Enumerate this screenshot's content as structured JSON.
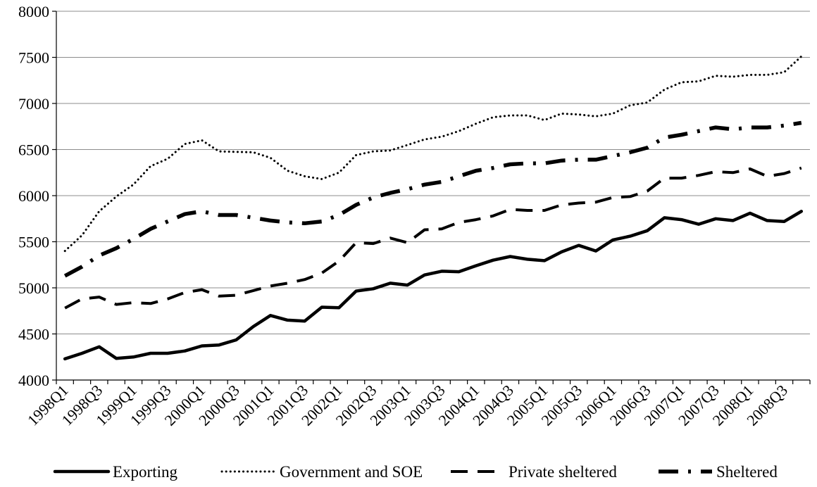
{
  "chart_data": {
    "type": "line",
    "title": "",
    "xlabel": "",
    "ylabel": "",
    "ylim": [
      4000,
      8000
    ],
    "yticks": [
      4000,
      4500,
      5000,
      5500,
      6000,
      6500,
      7000,
      7500,
      8000
    ],
    "grid": "horizontal",
    "legend_position": "bottom",
    "x": [
      "1998Q1",
      "1998Q2",
      "1998Q3",
      "1998Q4",
      "1999Q1",
      "1999Q2",
      "1999Q3",
      "1999Q4",
      "2000Q1",
      "2000Q2",
      "2000Q3",
      "2000Q4",
      "2001Q1",
      "2001Q2",
      "2001Q3",
      "2001Q4",
      "2002Q1",
      "2002Q2",
      "2002Q3",
      "2002Q4",
      "2003Q1",
      "2003Q2",
      "2003Q3",
      "2003Q4",
      "2004Q1",
      "2004Q2",
      "2004Q3",
      "2004Q4",
      "2005Q1",
      "2005Q2",
      "2005Q3",
      "2005Q4",
      "2006Q1",
      "2006Q2",
      "2006Q3",
      "2006Q4",
      "2007Q1",
      "2007Q2",
      "2007Q3",
      "2007Q4",
      "2008Q1",
      "2008Q2",
      "2008Q3",
      "2008Q4"
    ],
    "xtick_labels": [
      "1998Q1",
      "1998Q3",
      "1999Q1",
      "1999Q3",
      "2000Q1",
      "2000Q3",
      "2001Q1",
      "2001Q3",
      "2002Q1",
      "2002Q3",
      "2003Q1",
      "2003Q3",
      "2004Q1",
      "2004Q3",
      "2005Q1",
      "2005Q3",
      "2006Q1",
      "2006Q3",
      "2007Q1",
      "2007Q3",
      "2008Q1",
      "2008Q3"
    ],
    "series": [
      {
        "name": "Exporting",
        "style": "solid",
        "values": [
          4230,
          4290,
          4360,
          4235,
          4250,
          4290,
          4290,
          4315,
          4370,
          4380,
          4435,
          4580,
          4700,
          4650,
          4640,
          4790,
          4785,
          4965,
          4990,
          5050,
          5030,
          5140,
          5180,
          5175,
          5240,
          5300,
          5340,
          5310,
          5295,
          5390,
          5460,
          5400,
          5520,
          5560,
          5620,
          5760,
          5740,
          5690,
          5750,
          5730,
          5810,
          5730,
          5720,
          5830
        ]
      },
      {
        "name": "Government and SOE",
        "style": "dotted",
        "values": [
          5400,
          5570,
          5830,
          5990,
          6120,
          6320,
          6400,
          6560,
          6600,
          6480,
          6475,
          6470,
          6410,
          6270,
          6210,
          6180,
          6250,
          6440,
          6480,
          6490,
          6550,
          6610,
          6640,
          6700,
          6780,
          6850,
          6870,
          6870,
          6820,
          6890,
          6880,
          6860,
          6890,
          6980,
          7010,
          7150,
          7230,
          7240,
          7300,
          7290,
          7310,
          7310,
          7340,
          7510
        ]
      },
      {
        "name": "Private sheltered",
        "style": "dashed",
        "values": [
          4780,
          4880,
          4900,
          4820,
          4840,
          4830,
          4880,
          4950,
          4980,
          4910,
          4920,
          4970,
          5020,
          5050,
          5090,
          5160,
          5290,
          5490,
          5480,
          5540,
          5490,
          5630,
          5640,
          5710,
          5740,
          5780,
          5850,
          5840,
          5840,
          5900,
          5920,
          5930,
          5980,
          5990,
          6050,
          6190,
          6190,
          6220,
          6260,
          6250,
          6290,
          6210,
          6240,
          6300
        ]
      },
      {
        "name": "Sheltered",
        "style": "dash-dot",
        "values": [
          5130,
          5230,
          5350,
          5430,
          5530,
          5640,
          5720,
          5800,
          5830,
          5790,
          5790,
          5760,
          5730,
          5710,
          5700,
          5720,
          5790,
          5900,
          5980,
          6030,
          6070,
          6120,
          6150,
          6210,
          6270,
          6300,
          6340,
          6350,
          6350,
          6380,
          6390,
          6390,
          6430,
          6470,
          6520,
          6630,
          6660,
          6700,
          6740,
          6720,
          6740,
          6740,
          6760,
          6790
        ]
      }
    ]
  }
}
